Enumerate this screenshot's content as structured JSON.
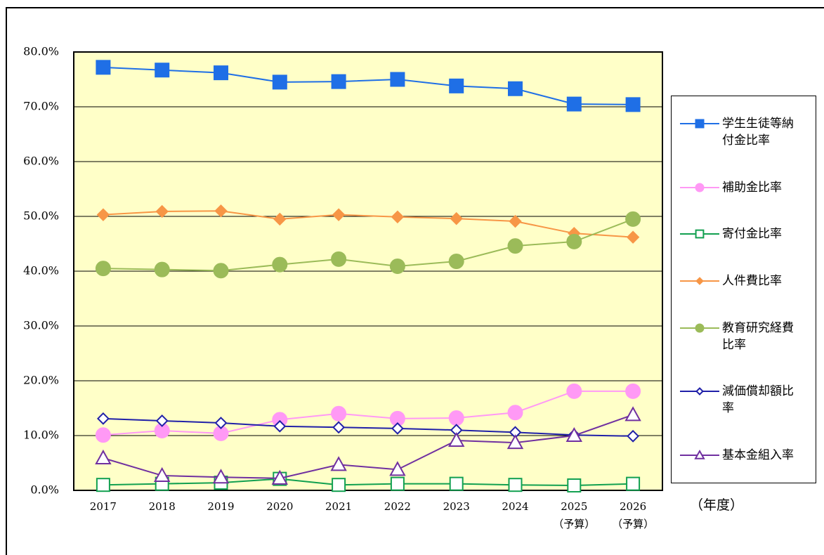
{
  "chart_data": {
    "type": "line",
    "categories": [
      "2017",
      "2018",
      "2019",
      "2020",
      "2021",
      "2022",
      "2023",
      "2024",
      "2025\n（予算）",
      "2026\n（予算）"
    ],
    "xlabel": "（年度）",
    "ylim": [
      0,
      80
    ],
    "yticks": [
      {
        "value": 0,
        "label": "0.0%"
      },
      {
        "value": 10,
        "label": "10.0%"
      },
      {
        "value": 20,
        "label": "20.0%"
      },
      {
        "value": 30,
        "label": "30.0%"
      },
      {
        "value": 40,
        "label": "40.0%"
      },
      {
        "value": 50,
        "label": "50.0%"
      },
      {
        "value": 60,
        "label": "60.0%"
      },
      {
        "value": 70,
        "label": "70.0%"
      },
      {
        "value": 80,
        "label": "80.0%"
      }
    ],
    "grid": true,
    "background": "#ffffc8",
    "legend": "right",
    "series": [
      {
        "name": "学生生徒等納付金比率",
        "color": "#1f6fe6",
        "marker": "square",
        "values": [
          77.2,
          76.7,
          76.2,
          74.5,
          74.6,
          75.0,
          73.8,
          73.3,
          70.5,
          70.4
        ]
      },
      {
        "name": "補助金比率",
        "color": "#ff99f5",
        "marker": "circle",
        "values": [
          10.1,
          10.9,
          10.4,
          12.9,
          14.0,
          13.1,
          13.2,
          14.2,
          18.1,
          18.1
        ]
      },
      {
        "name": "寄付金比率",
        "color": "#12a050",
        "marker": "square-open",
        "values": [
          1.0,
          1.2,
          1.4,
          2.1,
          1.0,
          1.2,
          1.2,
          1.0,
          0.9,
          1.2
        ]
      },
      {
        "name": "人件費比率",
        "color": "#f79646",
        "marker": "diamond",
        "values": [
          50.3,
          50.9,
          51.0,
          49.5,
          50.3,
          49.9,
          49.6,
          49.1,
          46.9,
          46.2
        ]
      },
      {
        "name": "教育研究経費比率",
        "color": "#9bbb59",
        "marker": "circle",
        "values": [
          40.5,
          40.3,
          40.1,
          41.2,
          42.2,
          40.9,
          41.8,
          44.6,
          45.4,
          49.5
        ]
      },
      {
        "name": "減価償却額比率",
        "color": "#2020a8",
        "marker": "diamond-open",
        "values": [
          13.1,
          12.7,
          12.3,
          11.7,
          11.5,
          11.3,
          11.0,
          10.6,
          10.1,
          9.9
        ]
      },
      {
        "name": "基本金組入率",
        "color": "#7030a0",
        "marker": "triangle-open",
        "values": [
          5.9,
          2.7,
          2.4,
          2.2,
          4.7,
          3.8,
          9.1,
          8.7,
          10.0,
          13.8
        ]
      }
    ]
  }
}
